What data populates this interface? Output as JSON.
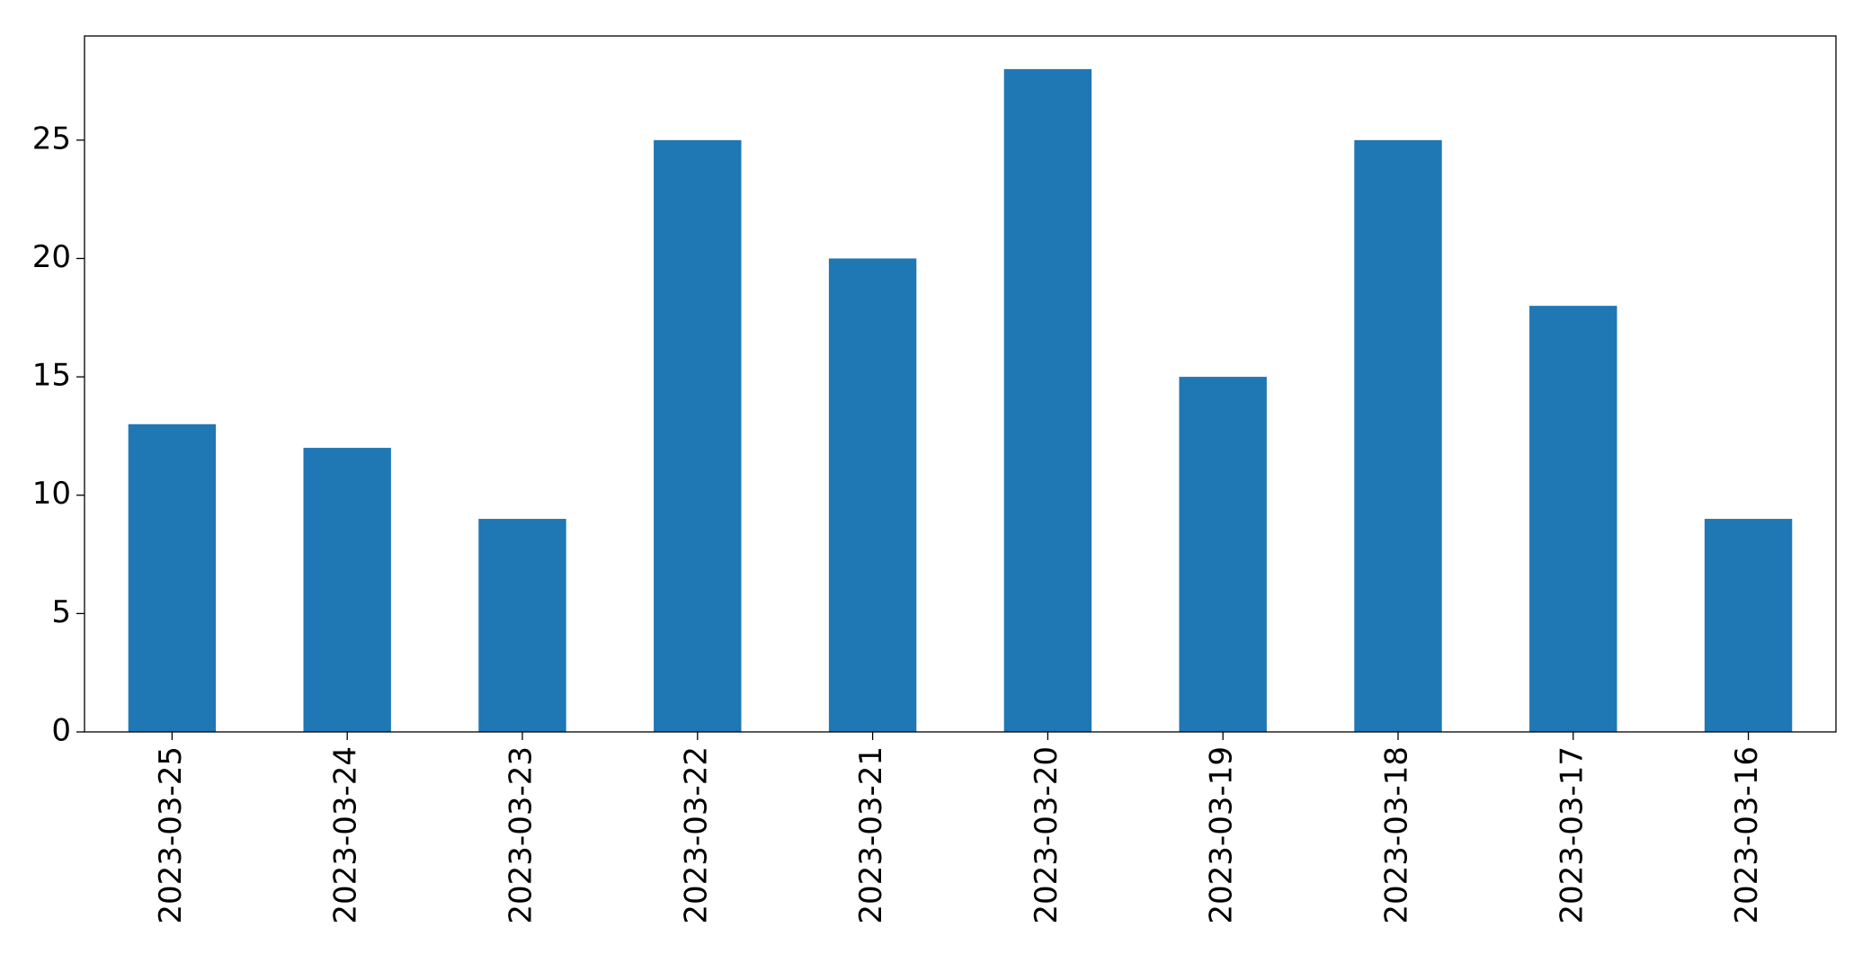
{
  "chart_data": {
    "type": "bar",
    "categories": [
      "2023-03-25",
      "2023-03-24",
      "2023-03-23",
      "2023-03-22",
      "2023-03-21",
      "2023-03-20",
      "2023-03-19",
      "2023-03-18",
      "2023-03-17",
      "2023-03-16"
    ],
    "values": [
      13,
      12,
      9,
      25,
      20,
      28,
      15,
      25,
      18,
      9
    ],
    "color": "#1f77b4",
    "ylim": [
      0,
      29.4
    ],
    "yticks": [
      0,
      5,
      10,
      15,
      20,
      25
    ],
    "grid": false
  }
}
